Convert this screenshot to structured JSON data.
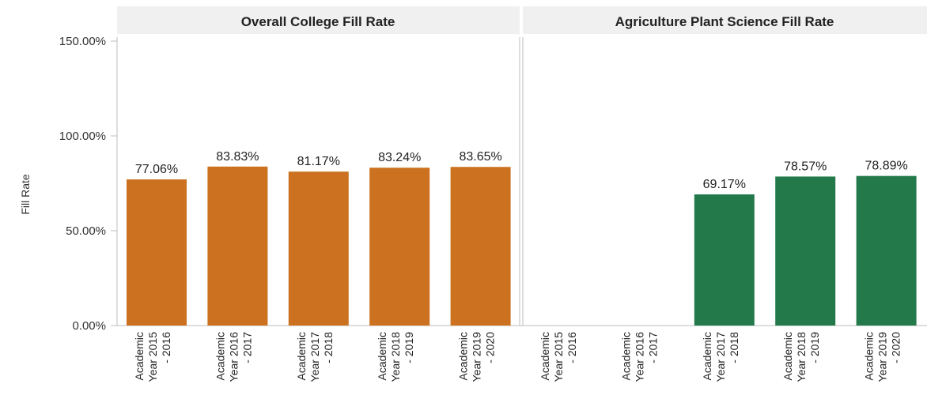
{
  "chart_data": {
    "type": "bar",
    "ylabel": "Fill Rate",
    "ylim": [
      0,
      150
    ],
    "yticks": [
      "0.00%",
      "50.00%",
      "100.00%",
      "150.00%"
    ],
    "ytick_values": [
      0,
      50,
      100,
      150
    ],
    "categories": [
      [
        "Academic",
        "Year 2015",
        "- 2016"
      ],
      [
        "Academic",
        "Year 2016",
        "- 2017"
      ],
      [
        "Academic",
        "Year 2017",
        "- 2018"
      ],
      [
        "Academic",
        "Year 2018",
        "- 2019"
      ],
      [
        "Academic",
        "Year 2019",
        "- 2020"
      ]
    ],
    "panels": [
      {
        "title": "Overall College Fill Rate",
        "color": "#cc711f",
        "values": [
          77.06,
          83.83,
          81.17,
          83.24,
          83.65
        ],
        "labels": [
          "77.06%",
          "83.83%",
          "81.17%",
          "83.24%",
          "83.65%"
        ]
      },
      {
        "title": "Agriculture Plant Science Fill Rate",
        "color": "#24794b",
        "values": [
          null,
          null,
          69.17,
          78.57,
          78.89
        ],
        "labels": [
          "",
          "",
          "69.17%",
          "78.57%",
          "78.89%"
        ]
      }
    ]
  }
}
